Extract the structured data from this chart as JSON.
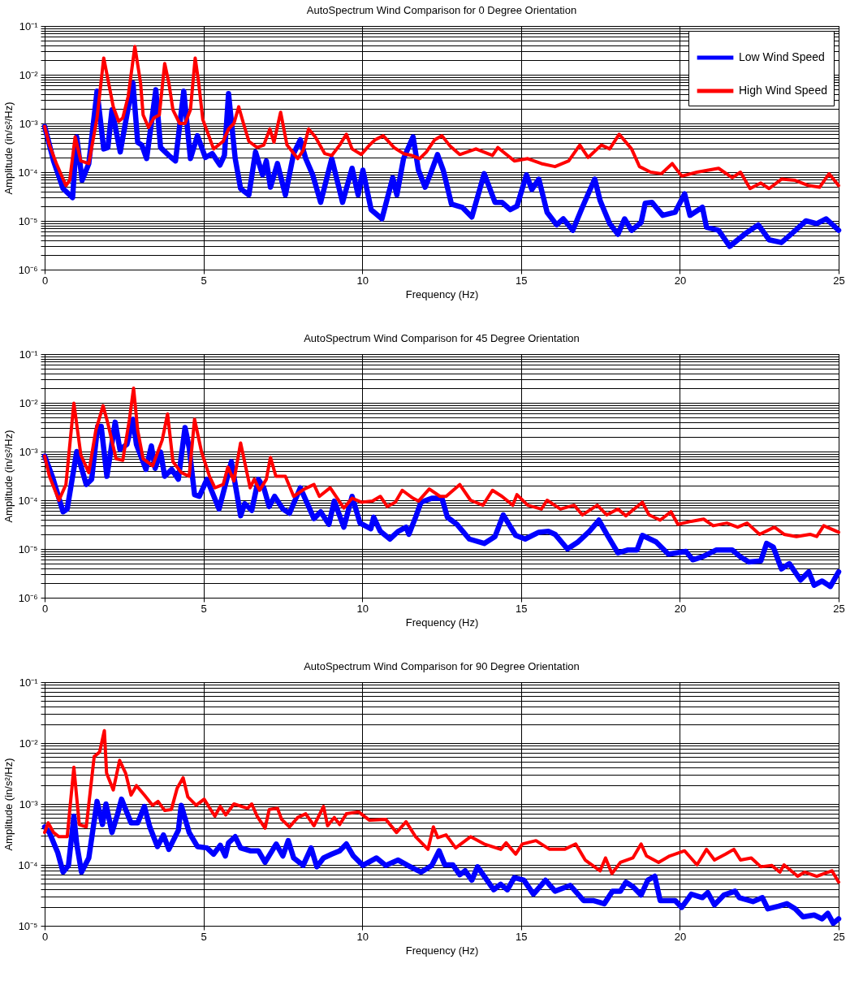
{
  "chart_data": [
    {
      "type": "line",
      "title": "AutoSpectrum Wind Comparison for 0 Degree Orientation",
      "xlabel": "Frequency (Hz)",
      "ylabel": "Amplitude (in/s²/Hz)",
      "log": true,
      "grid": true,
      "legend": "top right",
      "marker": "none",
      "line_style": "solid",
      "xlim": [
        0,
        25
      ],
      "xticks": [
        0,
        5,
        10,
        15,
        20,
        25
      ],
      "ylim": [
        1e-06,
        0.1
      ],
      "yticks": [
        {
          "value": 1e-06,
          "label": "10⁻⁶"
        },
        {
          "value": 2e-06,
          "label": null
        },
        {
          "value": 3e-06,
          "label": null
        },
        {
          "value": 4e-06,
          "label": null
        },
        {
          "value": 5e-06,
          "label": null
        },
        {
          "value": 6e-06,
          "label": null
        },
        {
          "value": 7e-06,
          "label": null
        },
        {
          "value": 8e-06,
          "label": null
        },
        {
          "value": 9e-06,
          "label": null
        },
        {
          "value": 1e-05,
          "label": "10⁻⁵"
        },
        {
          "value": 2e-05,
          "label": null
        },
        {
          "value": 3e-05,
          "label": null
        },
        {
          "value": 4e-05,
          "label": null
        },
        {
          "value": 5e-05,
          "label": null
        },
        {
          "value": 6e-05,
          "label": null
        },
        {
          "value": 7e-05,
          "label": null
        },
        {
          "value": 8e-05,
          "label": null
        },
        {
          "value": 9e-05,
          "label": null
        },
        {
          "value": 0.0001,
          "label": "10⁻⁴"
        },
        {
          "value": 0.0002,
          "label": null
        },
        {
          "value": 0.0003,
          "label": null
        },
        {
          "value": 0.0004,
          "label": null
        },
        {
          "value": 0.0005,
          "label": null
        },
        {
          "value": 0.0006,
          "label": null
        },
        {
          "value": 0.0007,
          "label": null
        },
        {
          "value": 0.0008,
          "label": null
        },
        {
          "value": 0.0009,
          "label": null
        },
        {
          "value": 0.001,
          "label": "10⁻³"
        },
        {
          "value": 0.002,
          "label": null
        },
        {
          "value": 0.003,
          "label": null
        },
        {
          "value": 0.004,
          "label": null
        },
        {
          "value": 0.005,
          "label": null
        },
        {
          "value": 0.006,
          "label": null
        },
        {
          "value": 0.007,
          "label": null
        },
        {
          "value": 0.008,
          "label": null
        },
        {
          "value": 0.009,
          "label": null
        },
        {
          "value": 0.01,
          "label": "10⁻²"
        },
        {
          "value": 0.02,
          "label": null
        },
        {
          "value": 0.03,
          "label": null
        },
        {
          "value": 0.04,
          "label": null
        },
        {
          "value": 0.05,
          "label": null
        },
        {
          "value": 0.06,
          "label": null
        },
        {
          "value": 0.07,
          "label": null
        },
        {
          "value": 0.08,
          "label": null
        },
        {
          "value": 0.09,
          "label": null
        },
        {
          "value": 0.1,
          "label": "10⁻¹"
        }
      ],
      "series": [
        {
          "name": "Low Wind Speed",
          "color": "#0000ff",
          "x": [
            0,
            0.28,
            0.58,
            0.88,
            1.01,
            1.18,
            1.39,
            1.65,
            1.86,
            1.99,
            2.12,
            2.38,
            2.59,
            2.78,
            2.93,
            3.06,
            3.21,
            3.36,
            3.5,
            3.65,
            3.91,
            4.12,
            4.38,
            4.59,
            4.81,
            5.06,
            5.28,
            5.52,
            5.66,
            5.79,
            6,
            6.17,
            6.43,
            6.64,
            6.86,
            6.98,
            7.11,
            7.33,
            7.58,
            7.84,
            8.05,
            8.22,
            8.44,
            8.69,
            9.04,
            9.38,
            9.68,
            9.87,
            10.02,
            10.28,
            10.62,
            10.96,
            11.09,
            11.3,
            11.6,
            11.77,
            11.98,
            12.15,
            12.37,
            12.55,
            12.81,
            13.15,
            13.45,
            13.84,
            14.18,
            14.4,
            14.66,
            14.87,
            15.17,
            15.34,
            15.56,
            15.82,
            16.12,
            16.33,
            16.63,
            16.93,
            17.32,
            17.49,
            17.79,
            18.05,
            18.26,
            18.48,
            18.78,
            18.91,
            19.12,
            19.46,
            19.85,
            20.15,
            20.32,
            20.71,
            20.84,
            21.22,
            21.57,
            22.08,
            22.47,
            22.81,
            23.2,
            23.54,
            23.97,
            24.31,
            24.61,
            25
          ],
          "values": [
            0.00087,
            0.00017,
            4.6e-05,
            3e-05,
            0.00053,
            6.8e-05,
            0.00015,
            0.0046,
            0.0003,
            0.00032,
            0.0019,
            0.00026,
            0.0015,
            0.0068,
            0.00041,
            0.00036,
            0.00019,
            0.001,
            0.0049,
            0.00032,
            0.00022,
            0.00017,
            0.0046,
            0.00019,
            0.00056,
            0.0002,
            0.00024,
            0.00014,
            0.00022,
            0.0041,
            0.00019,
            4.6e-05,
            3.4e-05,
            0.00026,
            8.8e-05,
            0.00017,
            4.9e-05,
            0.00015,
            3.4e-05,
            0.00024,
            0.00046,
            0.00019,
            8.8e-05,
            2.4e-05,
            0.00019,
            2.4e-05,
            0.00012,
            3.4e-05,
            0.00011,
            1.7e-05,
            1.1e-05,
            7.7e-05,
            3.4e-05,
            0.00019,
            0.00053,
            0.00011,
            4.9e-05,
            9.3e-05,
            0.00023,
            0.00011,
            2.2e-05,
            1.9e-05,
            1.2e-05,
            9.3e-05,
            2.4e-05,
            2.4e-05,
            1.7e-05,
            2e-05,
            8.8e-05,
            4.4e-05,
            7.2e-05,
            1.5e-05,
            8.3e-06,
            1.1e-05,
            6.4e-06,
            1.9e-05,
            7.2e-05,
            2.6e-05,
            8.8e-06,
            5.3e-06,
            1.1e-05,
            6.4e-06,
            9.3e-06,
            2.3e-05,
            2.4e-05,
            1.3e-05,
            1.5e-05,
            3.6e-05,
            1.3e-05,
            1.9e-05,
            7.4e-06,
            6.4e-06,
            3e-06,
            5.6e-06,
            8.3e-06,
            4.1e-06,
            3.6e-06,
            5.6e-06,
            1e-05,
            8.8e-06,
            1.1e-05,
            6.4e-06
          ]
        },
        {
          "name": "High Wind Speed",
          "color": "#ff0000",
          "x": [
            0,
            0.15,
            0.37,
            0.67,
            0.79,
            0.96,
            1.14,
            1.39,
            1.65,
            1.86,
            2.16,
            2.33,
            2.46,
            2.63,
            2.84,
            3.02,
            3.1,
            3.27,
            3.44,
            3.61,
            3.78,
            3.91,
            4.04,
            4.25,
            4.42,
            4.59,
            4.74,
            4.85,
            4.98,
            5.32,
            5.62,
            5.79,
            5.96,
            6.11,
            6.26,
            6.43,
            6.69,
            6.9,
            7.09,
            7.22,
            7.43,
            7.63,
            7.97,
            8.14,
            8.31,
            8.52,
            8.82,
            9.04,
            9.29,
            9.5,
            9.68,
            9.97,
            10.23,
            10.4,
            10.66,
            11,
            11.3,
            11.56,
            11.81,
            12.02,
            12.28,
            12.51,
            12.77,
            13.07,
            13.58,
            14.1,
            14.27,
            14.79,
            15.21,
            15.64,
            16.07,
            16.5,
            16.85,
            17.11,
            17.53,
            17.79,
            18.09,
            18.48,
            18.73,
            19.08,
            19.42,
            19.76,
            20.06,
            20.54,
            21.22,
            21.65,
            21.91,
            22.21,
            22.55,
            22.81,
            23.2,
            23.63,
            24.06,
            24.4,
            24.7,
            25
          ],
          "values": [
            0.00087,
            0.00036,
            0.00015,
            5.3e-05,
            6.8e-05,
            0.00053,
            0.00017,
            0.00015,
            0.0013,
            0.022,
            0.0022,
            0.0011,
            0.0013,
            0.0036,
            0.038,
            0.0068,
            0.0015,
            0.00083,
            0.0013,
            0.0015,
            0.017,
            0.0068,
            0.0019,
            0.001,
            0.001,
            0.0019,
            0.022,
            0.0068,
            0.0012,
            0.0003,
            0.00043,
            0.00077,
            0.001,
            0.0022,
            0.001,
            0.00043,
            0.00032,
            0.00036,
            0.00077,
            0.00041,
            0.0017,
            0.00036,
            0.00019,
            0.00028,
            0.00077,
            0.00053,
            0.00024,
            0.00022,
            0.00036,
            0.0006,
            0.0003,
            0.00023,
            0.00036,
            0.00046,
            0.00056,
            0.00032,
            0.00024,
            0.00022,
            0.00019,
            0.00026,
            0.00046,
            0.00056,
            0.00034,
            0.00023,
            0.0003,
            0.00022,
            0.00032,
            0.00017,
            0.00019,
            0.00015,
            0.00013,
            0.00017,
            0.00036,
            0.0002,
            0.00036,
            0.0003,
            0.0006,
            0.0003,
            0.00013,
            0.0001,
            9.3e-05,
            0.00015,
            8.3e-05,
            0.0001,
            0.00012,
            7.7e-05,
            0.0001,
            4.6e-05,
            6e-05,
            4.6e-05,
            7.2e-05,
            6.8e-05,
            5.3e-05,
            4.9e-05,
            9.3e-05,
            5.3e-05
          ]
        }
      ]
    },
    {
      "type": "line",
      "title": "AutoSpectrum Wind Comparison for 45 Degree Orientation",
      "xlabel": "Frequency (Hz)",
      "ylabel": "Amplitude (in/s²/Hz)",
      "log": true,
      "grid": true,
      "legend": "top right",
      "marker": "none",
      "line_style": "solid",
      "xlim": [
        0,
        25
      ],
      "xticks": [
        0,
        5,
        10,
        15,
        20,
        25
      ],
      "ylim": [
        1e-06,
        0.1
      ],
      "yticks": [
        {
          "value": 1e-06,
          "label": "10⁻⁶"
        },
        {
          "value": 2e-06,
          "label": null
        },
        {
          "value": 3e-06,
          "label": null
        },
        {
          "value": 4e-06,
          "label": null
        },
        {
          "value": 5e-06,
          "label": null
        },
        {
          "value": 6e-06,
          "label": null
        },
        {
          "value": 7e-06,
          "label": null
        },
        {
          "value": 8e-06,
          "label": null
        },
        {
          "value": 9e-06,
          "label": null
        },
        {
          "value": 1e-05,
          "label": "10⁻⁵"
        },
        {
          "value": 2e-05,
          "label": null
        },
        {
          "value": 3e-05,
          "label": null
        },
        {
          "value": 4e-05,
          "label": null
        },
        {
          "value": 5e-05,
          "label": null
        },
        {
          "value": 6e-05,
          "label": null
        },
        {
          "value": 7e-05,
          "label": null
        },
        {
          "value": 8e-05,
          "label": null
        },
        {
          "value": 9e-05,
          "label": null
        },
        {
          "value": 0.0001,
          "label": "10⁻⁴"
        },
        {
          "value": 0.0002,
          "label": null
        },
        {
          "value": 0.0003,
          "label": null
        },
        {
          "value": 0.0004,
          "label": null
        },
        {
          "value": 0.0005,
          "label": null
        },
        {
          "value": 0.0006,
          "label": null
        },
        {
          "value": 0.0007,
          "label": null
        },
        {
          "value": 0.0008,
          "label": null
        },
        {
          "value": 0.0009,
          "label": null
        },
        {
          "value": 0.001,
          "label": "10⁻³"
        },
        {
          "value": 0.002,
          "label": null
        },
        {
          "value": 0.003,
          "label": null
        },
        {
          "value": 0.004,
          "label": null
        },
        {
          "value": 0.005,
          "label": null
        },
        {
          "value": 0.006,
          "label": null
        },
        {
          "value": 0.007,
          "label": null
        },
        {
          "value": 0.008,
          "label": null
        },
        {
          "value": 0.009,
          "label": null
        },
        {
          "value": 0.01,
          "label": "10⁻²"
        },
        {
          "value": 0.02,
          "label": null
        },
        {
          "value": 0.03,
          "label": null
        },
        {
          "value": 0.04,
          "label": null
        },
        {
          "value": 0.05,
          "label": null
        },
        {
          "value": 0.06,
          "label": null
        },
        {
          "value": 0.07,
          "label": null
        },
        {
          "value": 0.08,
          "label": null
        },
        {
          "value": 0.09,
          "label": null
        },
        {
          "value": 0.1,
          "label": "10⁻¹"
        }
      ],
      "series": [
        {
          "name": "Low Wind Speed",
          "color": "#0000ff",
          "x": [
            0,
            0.24,
            0.58,
            0.71,
            1.01,
            1.31,
            1.48,
            1.67,
            1.78,
            1.96,
            2.22,
            2.37,
            2.59,
            2.78,
            2.89,
            3.19,
            3.36,
            3.48,
            3.65,
            3.78,
            4,
            4.21,
            4.42,
            4.55,
            4.72,
            4.87,
            5.11,
            5.49,
            5.88,
            6.17,
            6.3,
            6.52,
            6.73,
            6.9,
            7.07,
            7.24,
            7.5,
            7.71,
            8.05,
            8.48,
            8.69,
            8.95,
            9.12,
            9.42,
            9.68,
            9.93,
            10.27,
            10.36,
            10.57,
            10.87,
            11.13,
            11.38,
            11.47,
            11.68,
            11.85,
            12.19,
            12.51,
            12.68,
            12.98,
            13.37,
            13.84,
            14.18,
            14.44,
            14.83,
            15.13,
            15.56,
            15.86,
            16.07,
            16.46,
            16.8,
            17.15,
            17.45,
            17.7,
            18.05,
            18.35,
            18.65,
            18.82,
            19.25,
            19.64,
            20.19,
            20.41,
            20.71,
            21.14,
            21.65,
            21.91,
            22.17,
            22.55,
            22.73,
            22.94,
            23.2,
            23.45,
            23.8,
            24.06,
            24.23,
            24.48,
            24.74,
            25
          ],
          "values": [
            0.00081,
            0.00031,
            5.8e-05,
            6.6e-05,
            0.001,
            0.00021,
            0.00027,
            0.0033,
            0.0033,
            0.00031,
            0.004,
            0.0011,
            0.0014,
            0.0046,
            0.0014,
            0.00043,
            0.0013,
            0.00045,
            0.00098,
            0.00031,
            0.00043,
            0.00027,
            0.0031,
            0.0012,
            0.00013,
            0.00012,
            0.00027,
            6.6e-05,
            0.00062,
            4.8e-05,
            8.5e-05,
            6.2e-05,
            0.00027,
            0.00018,
            7.4e-05,
            0.00012,
            6.6e-05,
            5.4e-05,
            0.00018,
            4.2e-05,
            5.8e-05,
            3.2e-05,
            9.6e-05,
            2.8e-05,
            0.00012,
            3.4e-05,
            2.6e-05,
            4.5e-05,
            2.3e-05,
            1.6e-05,
            2.3e-05,
            2.8e-05,
            2e-05,
            4.5e-05,
            9.1e-05,
            0.00011,
            0.00011,
            4.5e-05,
            3.2e-05,
            1.6e-05,
            1.3e-05,
            1.8e-05,
            5e-05,
            1.9e-05,
            1.6e-05,
            2.2e-05,
            2.3e-05,
            2e-05,
            1e-05,
            1.4e-05,
            2.3e-05,
            3.9e-05,
            2e-05,
            8.3e-06,
            9.5e-06,
            9.5e-06,
            1.9e-05,
            1.4e-05,
            7.8e-06,
            8.9e-06,
            6e-06,
            6.9e-06,
            9.5e-06,
            9.5e-06,
            6.9e-06,
            5.4e-06,
            5.7e-06,
            1.3e-05,
            1.1e-05,
            3.9e-06,
            5e-06,
            2.3e-06,
            3.4e-06,
            1.8e-06,
            2.2e-06,
            1.7e-06,
            3.4e-06
          ]
        },
        {
          "name": "High Wind Speed",
          "color": "#ff0000",
          "x": [
            0,
            0.15,
            0.45,
            0.67,
            0.92,
            1.14,
            1.39,
            1.61,
            1.84,
            1.99,
            2.25,
            2.46,
            2.67,
            2.8,
            2.93,
            3.1,
            3.4,
            3.7,
            3.87,
            4.04,
            4.3,
            4.55,
            4.72,
            4.94,
            5.19,
            5.36,
            5.62,
            5.77,
            5.96,
            6.17,
            6.47,
            6.6,
            6.77,
            6.98,
            7.11,
            7.28,
            7.58,
            7.84,
            8.18,
            8.48,
            8.65,
            8.99,
            9.42,
            9.68,
            9.97,
            10.32,
            10.57,
            10.79,
            11.04,
            11.26,
            11.6,
            11.77,
            12.11,
            12.45,
            12.64,
            13.07,
            13.41,
            13.8,
            14.1,
            14.4,
            14.74,
            14.87,
            15.21,
            15.64,
            15.82,
            16.24,
            16.67,
            16.93,
            17.4,
            17.7,
            18.05,
            18.3,
            18.82,
            19.03,
            19.38,
            19.72,
            19.94,
            20.36,
            20.75,
            21.05,
            21.48,
            21.82,
            22.12,
            22.51,
            22.98,
            23.28,
            23.67,
            24.1,
            24.31,
            24.53,
            25
          ],
          "values": [
            0.00081,
            0.00031,
            0.0001,
            0.00021,
            0.0098,
            0.00085,
            0.00037,
            0.0027,
            0.0087,
            0.0038,
            0.00071,
            0.00066,
            0.0046,
            0.02,
            0.0027,
            0.00071,
            0.00051,
            0.0017,
            0.0059,
            0.00062,
            0.00037,
            0.00031,
            0.0046,
            0.00098,
            0.00031,
            0.00018,
            0.00021,
            0.00048,
            0.00025,
            0.0015,
            0.00018,
            0.00027,
            0.00016,
            0.00027,
            0.00076,
            0.00031,
            0.00031,
            0.00012,
            0.00017,
            0.00021,
            0.00012,
            0.00018,
            6.9e-05,
            0.00011,
            9.1e-05,
            9.6e-05,
            0.00012,
            7.4e-05,
            9.1e-05,
            0.00016,
            0.00011,
            9.6e-05,
            0.00017,
            0.00012,
            0.00012,
            0.00021,
            0.0001,
            7.9e-05,
            0.00016,
            0.00012,
            7.9e-05,
            0.00013,
            7.9e-05,
            6.6e-05,
            0.0001,
            6.6e-05,
            7.9e-05,
            5e-05,
            7.9e-05,
            5e-05,
            6.6e-05,
            4.8e-05,
            9.1e-05,
            5e-05,
            3.9e-05,
            5.8e-05,
            3.2e-05,
            3.7e-05,
            4.1e-05,
            3e-05,
            3.4e-05,
            2.8e-05,
            3.4e-05,
            2e-05,
            2.8e-05,
            2e-05,
            1.8e-05,
            2e-05,
            1.8e-05,
            3e-05,
            2.2e-05
          ]
        }
      ]
    },
    {
      "type": "line",
      "title": "AutoSpectrum Wind Comparison for 90 Degree Orientation",
      "xlabel": "Frequency (Hz)",
      "ylabel": "Amplitude (in/s²/Hz)",
      "log": true,
      "grid": true,
      "legend": "top right",
      "marker": "none",
      "line_style": "solid",
      "xlim": [
        0,
        25
      ],
      "xticks": [
        0,
        5,
        10,
        15,
        20,
        25
      ],
      "ylim": [
        1e-05,
        0.1
      ],
      "yticks": [
        {
          "value": 1e-05,
          "label": "10⁻⁵"
        },
        {
          "value": 2e-05,
          "label": null
        },
        {
          "value": 3e-05,
          "label": null
        },
        {
          "value": 4e-05,
          "label": null
        },
        {
          "value": 5e-05,
          "label": null
        },
        {
          "value": 6e-05,
          "label": null
        },
        {
          "value": 7e-05,
          "label": null
        },
        {
          "value": 8e-05,
          "label": null
        },
        {
          "value": 9e-05,
          "label": null
        },
        {
          "value": 0.0001,
          "label": "10⁻⁴"
        },
        {
          "value": 0.0002,
          "label": null
        },
        {
          "value": 0.0003,
          "label": null
        },
        {
          "value": 0.0004,
          "label": null
        },
        {
          "value": 0.0005,
          "label": null
        },
        {
          "value": 0.0006,
          "label": null
        },
        {
          "value": 0.0007,
          "label": null
        },
        {
          "value": 0.0008,
          "label": null
        },
        {
          "value": 0.0009,
          "label": null
        },
        {
          "value": 0.001,
          "label": "10⁻³"
        },
        {
          "value": 0.002,
          "label": null
        },
        {
          "value": 0.003,
          "label": null
        },
        {
          "value": 0.004,
          "label": null
        },
        {
          "value": 0.005,
          "label": null
        },
        {
          "value": 0.006,
          "label": null
        },
        {
          "value": 0.007,
          "label": null
        },
        {
          "value": 0.008,
          "label": null
        },
        {
          "value": 0.009,
          "label": null
        },
        {
          "value": 0.01,
          "label": "10⁻²"
        },
        {
          "value": 0.02,
          "label": null
        },
        {
          "value": 0.03,
          "label": null
        },
        {
          "value": 0.04,
          "label": null
        },
        {
          "value": 0.05,
          "label": null
        },
        {
          "value": 0.06,
          "label": null
        },
        {
          "value": 0.07,
          "label": null
        },
        {
          "value": 0.08,
          "label": null
        },
        {
          "value": 0.09,
          "label": null
        },
        {
          "value": 0.1,
          "label": "10⁻¹"
        }
      ],
      "series": [
        {
          "name": "Low Wind Speed",
          "color": "#0000ff",
          "x": [
            0,
            0.15,
            0.41,
            0.58,
            0.75,
            0.92,
            1.01,
            1.16,
            1.39,
            1.65,
            1.82,
            1.93,
            2.12,
            2.29,
            2.42,
            2.72,
            2.93,
            3.14,
            3.31,
            3.55,
            3.74,
            3.91,
            4.21,
            4.3,
            4.55,
            4.81,
            5.11,
            5.32,
            5.53,
            5.69,
            5.79,
            6,
            6.17,
            6.47,
            6.73,
            6.94,
            7.29,
            7.5,
            7.67,
            7.84,
            8.14,
            8.39,
            8.57,
            8.78,
            9.04,
            9.29,
            9.5,
            9.72,
            10.02,
            10.45,
            10.74,
            11.13,
            11.43,
            11.85,
            12.19,
            12.42,
            12.6,
            12.85,
            13.07,
            13.24,
            13.45,
            13.63,
            14.14,
            14.36,
            14.57,
            14.79,
            15.09,
            15.39,
            15.77,
            16.07,
            16.55,
            16.97,
            17.27,
            17.62,
            17.88,
            18.13,
            18.3,
            18.52,
            18.78,
            18.99,
            19.21,
            19.38,
            19.85,
            20.06,
            20.36,
            20.71,
            20.88,
            21.09,
            21.39,
            21.74,
            21.87,
            22.3,
            22.6,
            22.77,
            23.11,
            23.37,
            23.63,
            23.88,
            24.23,
            24.48,
            24.66,
            24.83,
            25
          ],
          "values": [
            0.00042,
            0.00034,
            0.00016,
            7.6e-05,
            9.8e-05,
            0.00063,
            0.00022,
            7.6e-05,
            0.00013,
            0.0011,
            0.00046,
            0.001,
            0.00034,
            0.00066,
            0.0012,
            0.00049,
            0.00049,
            0.00091,
            0.00042,
            0.0002,
            0.00031,
            0.00018,
            0.00037,
            0.00095,
            0.00034,
            0.0002,
            0.00019,
            0.00015,
            0.00021,
            0.00014,
            0.00023,
            0.00029,
            0.00019,
            0.00017,
            0.00017,
            0.00011,
            0.00022,
            0.00014,
            0.00025,
            0.00013,
            9.8e-05,
            0.00019,
            9.3e-05,
            0.00013,
            0.00015,
            0.00017,
            0.00022,
            0.00014,
            9.8e-05,
            0.00013,
            9.8e-05,
            0.00012,
            9.8e-05,
            7.6e-05,
            9.8e-05,
            0.00017,
            0.0001,
            0.0001,
            6.9e-05,
            8e-05,
            5.6e-05,
            9.3e-05,
            3.9e-05,
            4.8e-05,
            3.9e-05,
            6.2e-05,
            5.6e-05,
            3.3e-05,
            5.6e-05,
            3.7e-05,
            4.6e-05,
            2.6e-05,
            2.6e-05,
            2.3e-05,
            3.7e-05,
            3.7e-05,
            5.2e-05,
            4.4e-05,
            3.2e-05,
            5.6e-05,
            6.5e-05,
            2.6e-05,
            2.6e-05,
            2e-05,
            3.3e-05,
            2.9e-05,
            3.5e-05,
            2.2e-05,
            3.2e-05,
            3.7e-05,
            2.9e-05,
            2.5e-05,
            2.9e-05,
            1.9e-05,
            2.1e-05,
            2.3e-05,
            1.9e-05,
            1.4e-05,
            1.5e-05,
            1.3e-05,
            1.6e-05,
            1.1e-05,
            1.3e-05
          ]
        },
        {
          "name": "High Wind Speed",
          "color": "#ff0000",
          "x": [
            0,
            0.11,
            0.28,
            0.45,
            0.71,
            0.92,
            1.09,
            1.31,
            1.56,
            1.73,
            1.88,
            1.95,
            2.16,
            2.36,
            2.55,
            2.72,
            2.89,
            3.14,
            3.4,
            3.57,
            3.78,
            3.99,
            4.17,
            4.36,
            4.51,
            4.77,
            5.02,
            5.36,
            5.53,
            5.7,
            5.96,
            6.39,
            6.52,
            6.69,
            6.94,
            7.07,
            7.33,
            7.46,
            7.71,
            7.97,
            8.22,
            8.48,
            8.78,
            8.91,
            9.12,
            9.29,
            9.5,
            9.89,
            10.23,
            10.74,
            11.08,
            11.38,
            11.68,
            12.07,
            12.24,
            12.38,
            12.64,
            12.94,
            13.41,
            13.84,
            14.36,
            14.53,
            14.83,
            15.04,
            15.47,
            15.9,
            16.37,
            16.72,
            17.02,
            17.49,
            17.66,
            17.86,
            18.13,
            18.52,
            18.78,
            18.95,
            19.33,
            19.68,
            20.15,
            20.54,
            20.84,
            21.09,
            21.44,
            21.7,
            21.91,
            22.25,
            22.55,
            22.89,
            23.15,
            23.28,
            23.71,
            23.93,
            24.31,
            24.79,
            25
          ],
          "values": [
            0.00034,
            0.00049,
            0.00034,
            0.00029,
            0.00029,
            0.004,
            0.00046,
            0.00042,
            0.006,
            0.0071,
            0.016,
            0.0032,
            0.0017,
            0.0052,
            0.0032,
            0.0014,
            0.002,
            0.0014,
            0.00095,
            0.0011,
            0.00078,
            0.00081,
            0.0018,
            0.0027,
            0.0013,
            0.00095,
            0.0012,
            0.00063,
            0.00091,
            0.00066,
            0.001,
            0.00085,
            0.001,
            0.00063,
            0.0004,
            0.00081,
            0.00085,
            0.00056,
            0.00042,
            0.0006,
            0.00069,
            0.00044,
            0.00091,
            0.00044,
            0.0006,
            0.00046,
            0.00069,
            0.00074,
            0.00054,
            0.00056,
            0.00034,
            0.00051,
            0.00029,
            0.00018,
            0.00042,
            0.00028,
            0.00031,
            0.00019,
            0.00029,
            0.00022,
            0.00018,
            0.00023,
            0.00015,
            0.00022,
            0.00025,
            0.00018,
            0.00018,
            0.00022,
            0.00012,
            8e-05,
            0.00013,
            7.2e-05,
            0.00011,
            0.00013,
            0.00022,
            0.00014,
            0.00011,
            0.00014,
            0.00017,
            0.0001,
            0.00018,
            0.00012,
            0.00015,
            0.00018,
            0.00012,
            0.00013,
            9.3e-05,
            9.8e-05,
            7.6e-05,
            0.0001,
            6.5e-05,
            7.6e-05,
            6.5e-05,
            8e-05,
            5.2e-05
          ]
        }
      ]
    }
  ]
}
